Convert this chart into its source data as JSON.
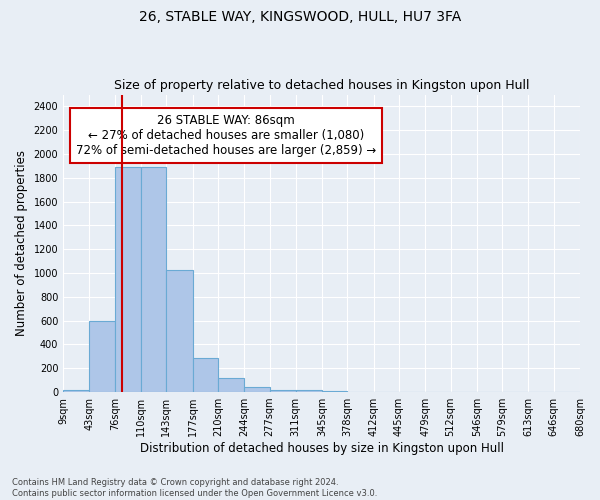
{
  "title": "26, STABLE WAY, KINGSWOOD, HULL, HU7 3FA",
  "subtitle": "Size of property relative to detached houses in Kingston upon Hull",
  "xlabel": "Distribution of detached houses by size in Kingston upon Hull",
  "ylabel": "Number of detached properties",
  "footer_line1": "Contains HM Land Registry data © Crown copyright and database right 2024.",
  "footer_line2": "Contains public sector information licensed under the Open Government Licence v3.0.",
  "bar_edges": [
    9,
    43,
    76,
    110,
    143,
    177,
    210,
    244,
    277,
    311,
    345,
    378,
    412,
    445,
    479,
    512,
    546,
    579,
    613,
    646,
    680
  ],
  "bar_heights": [
    15,
    600,
    1890,
    1890,
    1030,
    285,
    115,
    40,
    20,
    15,
    5,
    2,
    2,
    0,
    0,
    0,
    0,
    0,
    0,
    0
  ],
  "bar_color": "#aec6e8",
  "bar_edgecolor": "#6aaad4",
  "bar_linewidth": 0.8,
  "property_size": 86,
  "red_line_color": "#cc0000",
  "annotation_text": "26 STABLE WAY: 86sqm\n← 27% of detached houses are smaller (1,080)\n72% of semi-detached houses are larger (2,859) →",
  "annotation_box_edgecolor": "#cc0000",
  "annotation_box_facecolor": "white",
  "annotation_fontsize": 8.5,
  "ylim": [
    0,
    2500
  ],
  "yticks": [
    0,
    200,
    400,
    600,
    800,
    1000,
    1200,
    1400,
    1600,
    1800,
    2000,
    2200,
    2400
  ],
  "xlim_min": 9,
  "xlim_max": 680,
  "background_color": "#e8eef5",
  "axes_background_color": "#e8eef5",
  "grid_color": "white",
  "title_fontsize": 10,
  "subtitle_fontsize": 9,
  "ylabel_fontsize": 8.5,
  "xlabel_fontsize": 8.5,
  "tick_fontsize": 7
}
